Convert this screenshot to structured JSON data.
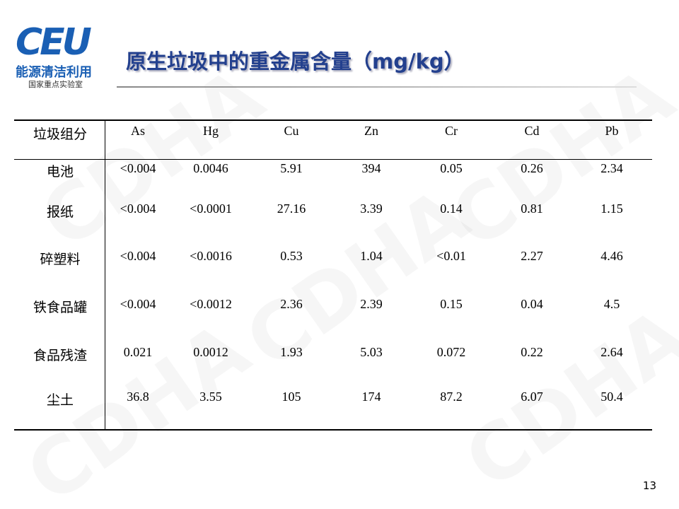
{
  "logo": {
    "mark": "CEU",
    "name": "能源清洁利用",
    "subtitle": "国家重点实验室"
  },
  "title": "原生垃圾中的重金属含量（mg/kg）",
  "watermark": "CDHA",
  "table": {
    "header": [
      "垃圾组分",
      "As",
      "Hg",
      "Cu",
      "Zn",
      "Cr",
      "Cd",
      "Pb"
    ],
    "rows": [
      [
        "电池",
        "<0.004",
        "0.0046",
        "5.91",
        "394",
        "0.05",
        "0.26",
        "2.34"
      ],
      [
        "报纸",
        "<0.004",
        "<0.0001",
        "27.16",
        "3.39",
        "0.14",
        "0.81",
        "1.15"
      ],
      [
        "碎塑料",
        "<0.004",
        "<0.0016",
        "0.53",
        "1.04",
        "<0.01",
        "2.27",
        "4.46"
      ],
      [
        "铁食品罐",
        "<0.004",
        "<0.0012",
        "2.36",
        "2.39",
        "0.15",
        "0.04",
        "4.5"
      ],
      [
        "食品残渣",
        "0.021",
        "0.0012",
        "1.93",
        "5.03",
        "0.072",
        "0.22",
        "2.64"
      ],
      [
        "尘土",
        "36.8",
        "3.55",
        "105",
        "174",
        "87.2",
        "6.07",
        "50.4"
      ]
    ]
  },
  "page_number": "13"
}
